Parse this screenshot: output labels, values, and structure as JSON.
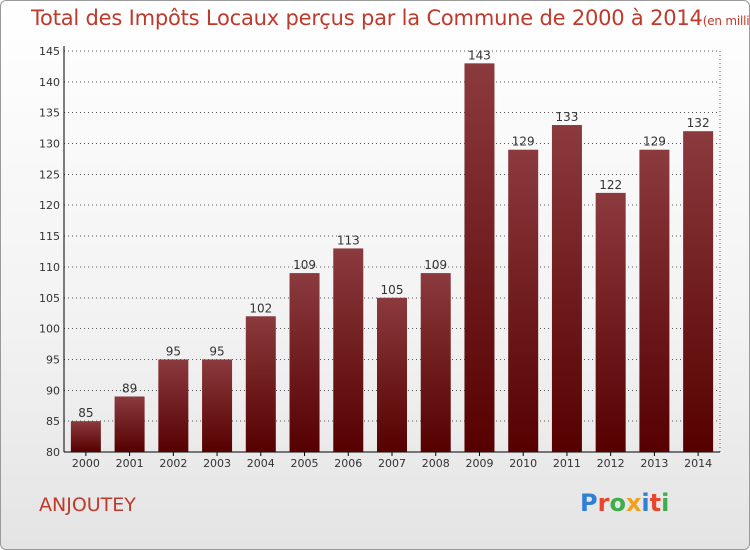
{
  "header": {
    "title": "Total des Impôts Locaux perçus par la Commune de 2000 à 2014",
    "unit": "(en milliers d'€)"
  },
  "commune": "ANJOUTEY",
  "logo": {
    "text": "Proxiti",
    "letters": [
      {
        "ch": "P",
        "color": "#2f7fd6"
      },
      {
        "ch": "r",
        "color": "#e8442e"
      },
      {
        "ch": "o",
        "color": "#3fae49"
      },
      {
        "ch": "x",
        "color": "#f0a01a"
      },
      {
        "ch": "i",
        "color": "#2f7fd6"
      },
      {
        "ch": "t",
        "color": "#e8442e"
      },
      {
        "ch": "i",
        "color": "#3fae49"
      }
    ]
  },
  "colors": {
    "title": "#c0392b",
    "bar_top": "#8b3a3e",
    "bar_bottom": "#560000",
    "grid": "#555555"
  },
  "chart_data": {
    "type": "bar",
    "categories": [
      "2000",
      "2001",
      "2002",
      "2003",
      "2004",
      "2005",
      "2006",
      "2007",
      "2008",
      "2009",
      "2010",
      "2011",
      "2012",
      "2013",
      "2014"
    ],
    "values": [
      85,
      89,
      95,
      95,
      102,
      109,
      113,
      105,
      109,
      143,
      129,
      133,
      122,
      129,
      132
    ],
    "ylim": [
      80,
      145
    ],
    "yticks": [
      80,
      85,
      90,
      95,
      100,
      105,
      110,
      115,
      120,
      125,
      130,
      135,
      140,
      145
    ],
    "grid": true,
    "data_labels": true,
    "legend": "none"
  }
}
